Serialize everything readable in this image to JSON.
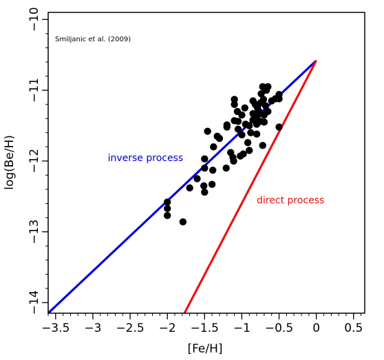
{
  "chart_data": {
    "type": "scatter",
    "xlabel": "[Fe/H]",
    "ylabel": "log(Be/H)",
    "xlim": [
      -3.6,
      0.65
    ],
    "ylim": [
      -14.15,
      -9.9
    ],
    "x_ticks": [
      -3.5,
      -3,
      -2.5,
      -2,
      -1.5,
      -1,
      -0.5,
      0,
      0.5
    ],
    "x_tick_labels": [
      "−3.5",
      "−3",
      "−2.5",
      "−2",
      "−1.5",
      "−1",
      "−0.5",
      "0",
      "0.5"
    ],
    "y_ticks": [
      -14,
      -13,
      -12,
      -11,
      -10
    ],
    "y_tick_labels": [
      "−14",
      "−13",
      "−12",
      "−11",
      "−10"
    ],
    "x_minor_step": 0.1,
    "y_minor_step": 0.2,
    "grid": false,
    "source_note": "Smiljanic et al. (2009)",
    "annotations": [
      {
        "text": "inverse process",
        "x": -2.8,
        "y": -12.0,
        "color": "#0000cc"
      },
      {
        "text": "direct process",
        "x": -0.8,
        "y": -12.6,
        "color": "#dd1111"
      }
    ],
    "lines": [
      {
        "name": "inverse process",
        "color": "#0000dd",
        "x": [
          -3.6,
          0.0
        ],
        "y": [
          -14.15,
          -10.58
        ]
      },
      {
        "name": "direct process",
        "color": "#ee1111",
        "x": [
          -1.77,
          0.0
        ],
        "y": [
          -14.15,
          -10.58
        ]
      }
    ],
    "points": [
      {
        "x": -2.0,
        "y": -12.58
      },
      {
        "x": -2.0,
        "y": -12.67
      },
      {
        "x": -2.0,
        "y": -12.77
      },
      {
        "x": -1.79,
        "y": -12.86
      },
      {
        "x": -1.7,
        "y": -12.38
      },
      {
        "x": -1.6,
        "y": -12.25
      },
      {
        "x": -1.51,
        "y": -12.35
      },
      {
        "x": -1.5,
        "y": -12.44
      },
      {
        "x": -1.5,
        "y": -12.1
      },
      {
        "x": -1.5,
        "y": -11.97
      },
      {
        "x": -1.46,
        "y": -11.58
      },
      {
        "x": -1.4,
        "y": -12.33
      },
      {
        "x": -1.39,
        "y": -12.13
      },
      {
        "x": -1.38,
        "y": -11.8
      },
      {
        "x": -1.3,
        "y": -11.68
      },
      {
        "x": -1.21,
        "y": -12.1
      },
      {
        "x": -1.2,
        "y": -11.52
      },
      {
        "x": -1.2,
        "y": -11.49
      },
      {
        "x": -1.15,
        "y": -11.88
      },
      {
        "x": -1.12,
        "y": -11.95
      },
      {
        "x": -1.11,
        "y": -12.0
      },
      {
        "x": -1.1,
        "y": -11.43
      },
      {
        "x": -1.1,
        "y": -11.2
      },
      {
        "x": -1.1,
        "y": -11.13
      },
      {
        "x": -1.06,
        "y": -11.3
      },
      {
        "x": -1.05,
        "y": -11.44
      },
      {
        "x": -1.05,
        "y": -11.55
      },
      {
        "x": -1.02,
        "y": -11.93
      },
      {
        "x": -1.0,
        "y": -11.35
      },
      {
        "x": -1.0,
        "y": -11.63
      },
      {
        "x": -0.98,
        "y": -11.9
      },
      {
        "x": -0.95,
        "y": -11.48
      },
      {
        "x": -0.9,
        "y": -11.5
      },
      {
        "x": -0.9,
        "y": -11.85
      },
      {
        "x": -0.88,
        "y": -11.6
      },
      {
        "x": -0.85,
        "y": -11.42
      },
      {
        "x": -0.85,
        "y": -11.33
      },
      {
        "x": -0.85,
        "y": -11.15
      },
      {
        "x": -0.82,
        "y": -11.2
      },
      {
        "x": -0.8,
        "y": -11.48
      },
      {
        "x": -0.8,
        "y": -11.38
      },
      {
        "x": -0.8,
        "y": -11.62
      },
      {
        "x": -0.79,
        "y": -11.25
      },
      {
        "x": -0.77,
        "y": -11.3
      },
      {
        "x": -0.75,
        "y": -11.44
      },
      {
        "x": -0.75,
        "y": -11.18
      },
      {
        "x": -0.74,
        "y": -11.05
      },
      {
        "x": -0.72,
        "y": -11.78
      },
      {
        "x": -0.72,
        "y": -10.95
      },
      {
        "x": -0.71,
        "y": -11.13
      },
      {
        "x": -0.7,
        "y": -11.35
      },
      {
        "x": -0.7,
        "y": -11.45
      },
      {
        "x": -0.68,
        "y": -11.22
      },
      {
        "x": -0.67,
        "y": -11.0
      },
      {
        "x": -0.65,
        "y": -11.3
      },
      {
        "x": -0.65,
        "y": -10.95
      },
      {
        "x": -0.6,
        "y": -11.15
      },
      {
        "x": -0.55,
        "y": -11.12
      },
      {
        "x": -0.5,
        "y": -11.52
      },
      {
        "x": -0.5,
        "y": -11.12
      },
      {
        "x": -0.5,
        "y": -11.06
      },
      {
        "x": -0.78,
        "y": -11.34
      },
      {
        "x": -0.92,
        "y": -11.74
      },
      {
        "x": -1.33,
        "y": -11.65
      },
      {
        "x": -0.96,
        "y": -11.25
      }
    ]
  }
}
